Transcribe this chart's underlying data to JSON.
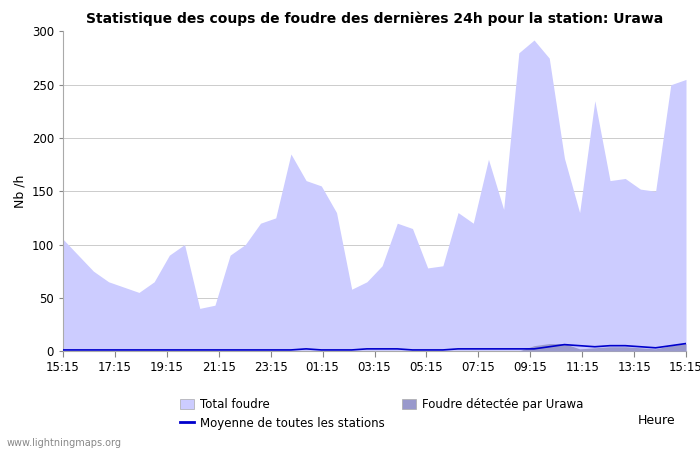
{
  "title": "Statistique des coups de foudre des dernières 24h pour la station: Urawa",
  "xlabel": "Heure",
  "ylabel": "Nb /h",
  "ylim": [
    0,
    300
  ],
  "yticks": [
    0,
    50,
    100,
    150,
    200,
    250,
    300
  ],
  "watermark": "www.lightningmaps.org",
  "legend_items": [
    "Total foudre",
    "Moyenne de toutes les stations",
    "Foudre détectée par Urawa"
  ],
  "color_total": "#ccccff",
  "color_urawa": "#9999cc",
  "color_moyenne": "#0000cc",
  "bg_color": "#ffffff",
  "xtick_labels": [
    "15:15",
    "17:15",
    "19:15",
    "21:15",
    "23:15",
    "01:15",
    "03:15",
    "05:15",
    "07:15",
    "09:15",
    "11:15",
    "13:15",
    "15:15"
  ],
  "total_foudre": [
    105,
    90,
    75,
    65,
    60,
    55,
    65,
    90,
    100,
    40,
    43,
    90,
    100,
    120,
    125,
    185,
    160,
    155,
    130,
    58,
    65,
    80,
    120,
    115,
    78,
    80,
    130,
    120,
    180,
    133,
    280,
    292,
    275,
    181,
    130,
    235,
    160,
    162,
    152,
    150,
    250,
    255
  ],
  "urawa_foudre": [
    0,
    0,
    0,
    0,
    0,
    0,
    0,
    0,
    0,
    0,
    0,
    0,
    0,
    0,
    0,
    0,
    0,
    0,
    0,
    0,
    0,
    0,
    0,
    0,
    0,
    0,
    0,
    0,
    0,
    0,
    0,
    5,
    7,
    7,
    2,
    3,
    4,
    4,
    3,
    2,
    5,
    7
  ],
  "moyenne": [
    1,
    1,
    1,
    1,
    1,
    1,
    1,
    1,
    1,
    1,
    1,
    1,
    1,
    1,
    1,
    1,
    2,
    1,
    1,
    1,
    2,
    2,
    2,
    1,
    1,
    1,
    2,
    2,
    2,
    2,
    2,
    2,
    4,
    6,
    5,
    4,
    5,
    5,
    4,
    3,
    5,
    7
  ],
  "n_points": 42
}
